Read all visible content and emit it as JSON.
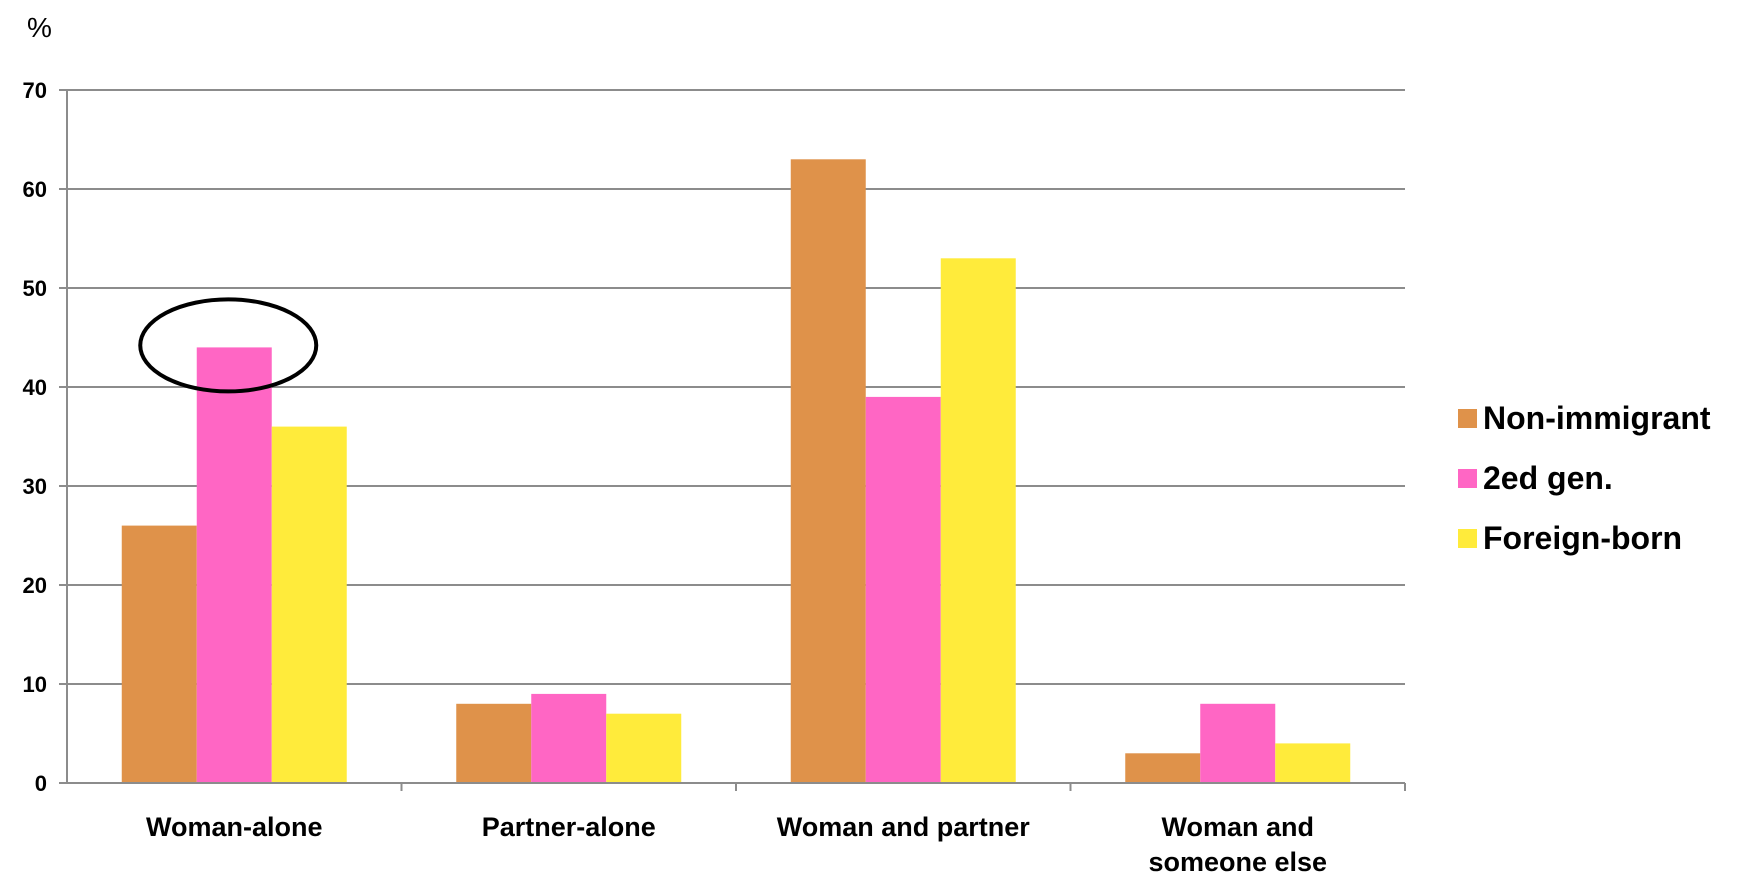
{
  "chart_data": {
    "type": "bar",
    "ylabel": "%",
    "ylim": [
      0,
      70
    ],
    "yticks": [
      0,
      10,
      20,
      30,
      40,
      50,
      60,
      70
    ],
    "grid": true,
    "legend_position": "right",
    "categories": [
      [
        "Woman-alone"
      ],
      [
        "Partner-alone"
      ],
      [
        "Woman and partner"
      ],
      [
        "Woman and",
        "someone else"
      ]
    ],
    "series": [
      {
        "name": "Non-immigrant",
        "color": "#df924a",
        "values": [
          26,
          8,
          63,
          3
        ]
      },
      {
        "name": "2ed gen.",
        "color": "#ff66c4",
        "values": [
          44,
          9,
          39,
          8
        ]
      },
      {
        "name": "Foreign-born",
        "color": "#ffeb3b",
        "values": [
          36,
          7,
          53,
          4
        ]
      }
    ],
    "annotation": {
      "type": "ellipse",
      "category_index": 0,
      "series_index": 1
    }
  }
}
